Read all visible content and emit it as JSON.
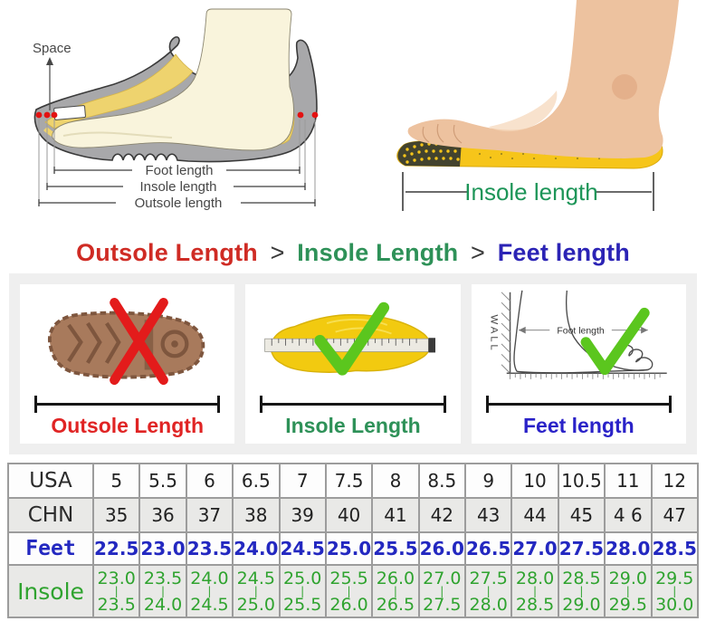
{
  "shoe_diagram": {
    "space_label": "Space",
    "foot_length_label": "Foot length",
    "insole_length_label": "Insole length",
    "outsole_length_label": "Outsole length"
  },
  "insole_photo": {
    "caption": "Insole length"
  },
  "heading": {
    "outsole": "Outsole Length",
    "gt1": ">",
    "insole": "Insole Length",
    "gt2": ">",
    "feet": "Feet length"
  },
  "cards": [
    {
      "caption": "Outsole Length",
      "mark": "cross"
    },
    {
      "caption": "Insole Length",
      "mark": "check"
    },
    {
      "caption": "Feet length",
      "mark": "check",
      "wall_label": "WALL",
      "inner_label": "Foot length"
    }
  ],
  "size_table": {
    "range_separator": "|",
    "rows": [
      {
        "id": "usa",
        "label": "USA",
        "values": [
          "5",
          "5.5",
          "6",
          "6.5",
          "7",
          "7.5",
          "8",
          "8.5",
          "9",
          "10",
          "10.5",
          "11",
          "12"
        ]
      },
      {
        "id": "chn",
        "label": "CHN",
        "values": [
          "35",
          "36",
          "37",
          "38",
          "39",
          "40",
          "41",
          "42",
          "43",
          "44",
          "45",
          "4 6",
          "47"
        ]
      },
      {
        "id": "feet",
        "label": "Feet",
        "values": [
          "22.5",
          "23.0",
          "23.5",
          "24.0",
          "24.5",
          "25.0",
          "25.5",
          "26.0",
          "26.5",
          "27.0",
          "27.5",
          "28.0",
          "28.5"
        ]
      },
      {
        "id": "insole",
        "label": "Insole",
        "values": [
          {
            "from": "23.0",
            "to": "23.5"
          },
          {
            "from": "23.5",
            "to": "24.0"
          },
          {
            "from": "24.0",
            "to": "24.5"
          },
          {
            "from": "24.5",
            "to": "25.0"
          },
          {
            "from": "25.0",
            "to": "25.5"
          },
          {
            "from": "25.5",
            "to": "26.0"
          },
          {
            "from": "26.0",
            "to": "26.5"
          },
          {
            "from": "27.0",
            "to": "27.5"
          },
          {
            "from": "27.5",
            "to": "28.0"
          },
          {
            "from": "28.0",
            "to": "28.5"
          },
          {
            "from": "28.5",
            "to": "29.0"
          },
          {
            "from": "29.0",
            "to": "29.5"
          },
          {
            "from": "29.5",
            "to": "30.0"
          }
        ]
      }
    ]
  },
  "colors": {
    "red_accent": "#cf2b24",
    "green_accent": "#2e9158",
    "blue_accent": "#2b23b5",
    "table_blue": "#2328c0",
    "table_green": "#2fa32f",
    "strip_bg": "#efefef",
    "table_alt_bg": "#e9e9e7",
    "border_gray": "#9c9c9c",
    "insole_yellow": "#f6c51a",
    "outsole_brown": "#a87a5c"
  }
}
